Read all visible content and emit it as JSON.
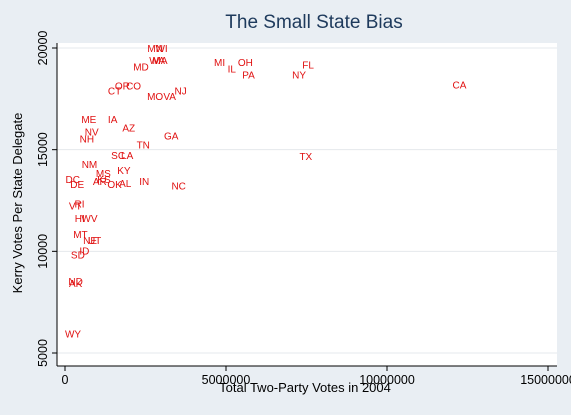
{
  "chart_data": {
    "type": "scatter",
    "title": "The Small State Bias",
    "xlabel": "Total Two-Party Votes in 2004",
    "ylabel": "Kerry Votes Per State Delegate",
    "xlim": [
      0,
      15000000
    ],
    "ylim": [
      5000,
      20000
    ],
    "xticks": [
      0,
      5000000,
      10000000,
      15000000
    ],
    "xtick_labels": [
      "0",
      "5000000",
      "10000000",
      "15000000"
    ],
    "yticks": [
      5000,
      10000,
      15000,
      20000
    ],
    "ytick_labels": [
      "5000",
      "10000",
      "15000",
      "20000"
    ],
    "grid": "horizontal",
    "marker": "state abbreviation labels",
    "colors": {
      "plot_bg": "#ffffff",
      "outer_bg": "#e9eef3",
      "labels": "#e01010",
      "title": "#1e3a5c",
      "grid": "#e4e8ec"
    },
    "points": [
      {
        "label": "MN",
        "x": 2800000,
        "y": 20000
      },
      {
        "label": "WI",
        "x": 3000000,
        "y": 20000
      },
      {
        "label": "WA",
        "x": 2860000,
        "y": 19400
      },
      {
        "label": "MA",
        "x": 2950000,
        "y": 19400
      },
      {
        "label": "MD",
        "x": 2360000,
        "y": 19100
      },
      {
        "label": "MI",
        "x": 4800000,
        "y": 19300
      },
      {
        "label": "OH",
        "x": 5600000,
        "y": 19300
      },
      {
        "label": "IL",
        "x": 5180000,
        "y": 19000
      },
      {
        "label": "PA",
        "x": 5700000,
        "y": 18700
      },
      {
        "label": "FL",
        "x": 7550000,
        "y": 19200
      },
      {
        "label": "NY",
        "x": 7270000,
        "y": 18700
      },
      {
        "label": "CA",
        "x": 12250000,
        "y": 18200
      },
      {
        "label": "OR",
        "x": 1780000,
        "y": 18150
      },
      {
        "label": "CO",
        "x": 2130000,
        "y": 18150
      },
      {
        "label": "CT",
        "x": 1540000,
        "y": 17900
      },
      {
        "label": "NJ",
        "x": 3590000,
        "y": 17900
      },
      {
        "label": "MO",
        "x": 2800000,
        "y": 17650
      },
      {
        "label": "VA",
        "x": 3250000,
        "y": 17650
      },
      {
        "label": "ME",
        "x": 740000,
        "y": 16500
      },
      {
        "label": "IA",
        "x": 1480000,
        "y": 16500
      },
      {
        "label": "AZ",
        "x": 1980000,
        "y": 16100
      },
      {
        "label": "NV",
        "x": 830000,
        "y": 15900
      },
      {
        "label": "NH",
        "x": 680000,
        "y": 15550
      },
      {
        "label": "GA",
        "x": 3300000,
        "y": 15700
      },
      {
        "label": "TN",
        "x": 2430000,
        "y": 15250
      },
      {
        "label": "SC",
        "x": 1650000,
        "y": 14750
      },
      {
        "label": "LA",
        "x": 1930000,
        "y": 14750
      },
      {
        "label": "TX",
        "x": 7480000,
        "y": 14700
      },
      {
        "label": "NM",
        "x": 760000,
        "y": 14300
      },
      {
        "label": "KY",
        "x": 1830000,
        "y": 14000
      },
      {
        "label": "MS",
        "x": 1190000,
        "y": 13850
      },
      {
        "label": "AR",
        "x": 1080000,
        "y": 13450
      },
      {
        "label": "KS",
        "x": 1210000,
        "y": 13550
      },
      {
        "label": "OK",
        "x": 1540000,
        "y": 13300
      },
      {
        "label": "AL",
        "x": 1870000,
        "y": 13350
      },
      {
        "label": "IN",
        "x": 2460000,
        "y": 13450
      },
      {
        "label": "NC",
        "x": 3530000,
        "y": 13250
      },
      {
        "label": "DC",
        "x": 240000,
        "y": 13550
      },
      {
        "label": "DE",
        "x": 380000,
        "y": 13300
      },
      {
        "label": "RI",
        "x": 450000,
        "y": 12350
      },
      {
        "label": "VT",
        "x": 320000,
        "y": 12250
      },
      {
        "label": "HI",
        "x": 460000,
        "y": 11650
      },
      {
        "label": "WV",
        "x": 760000,
        "y": 11650
      },
      {
        "label": "MT",
        "x": 480000,
        "y": 10850
      },
      {
        "label": "NE",
        "x": 780000,
        "y": 10550
      },
      {
        "label": "UT",
        "x": 920000,
        "y": 10550
      },
      {
        "label": "ID",
        "x": 600000,
        "y": 10050
      },
      {
        "label": "SD",
        "x": 400000,
        "y": 9850
      },
      {
        "label": "ND",
        "x": 330000,
        "y": 8550
      },
      {
        "label": "AK",
        "x": 330000,
        "y": 8450
      },
      {
        "label": "WY",
        "x": 250000,
        "y": 5950
      }
    ]
  }
}
